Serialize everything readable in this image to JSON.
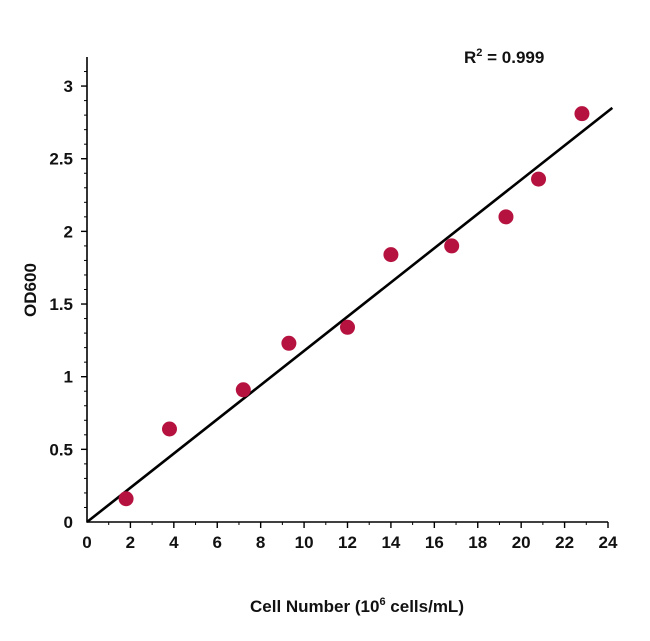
{
  "chart_data": {
    "type": "scatter",
    "title": "",
    "xlabel": {
      "prefix": "Cell Number (10",
      "sup": "6",
      "suffix": " cells/mL)"
    },
    "ylabel": "OD600",
    "xlim": [
      0,
      24
    ],
    "ylim": [
      0,
      3.2
    ],
    "xticks": [
      0,
      2,
      4,
      6,
      8,
      10,
      12,
      14,
      16,
      18,
      20,
      22,
      24
    ],
    "yticks": [
      0,
      0.5,
      1,
      1.5,
      2,
      2.5,
      3
    ],
    "ytick_labels": [
      "0",
      "0.5",
      "1",
      "1.5",
      "2",
      "2.5",
      "3"
    ],
    "grid": false,
    "points": [
      {
        "x": 1.8,
        "y": 0.16
      },
      {
        "x": 3.8,
        "y": 0.64
      },
      {
        "x": 7.2,
        "y": 0.91
      },
      {
        "x": 9.3,
        "y": 1.23
      },
      {
        "x": 12.0,
        "y": 1.34
      },
      {
        "x": 14.0,
        "y": 1.84
      },
      {
        "x": 16.8,
        "y": 1.9
      },
      {
        "x": 19.3,
        "y": 2.1
      },
      {
        "x": 20.8,
        "y": 2.36
      },
      {
        "x": 22.8,
        "y": 2.81
      }
    ],
    "fit_line": {
      "x0": 0,
      "y0": 0,
      "x1": 24.2,
      "y1": 2.85
    },
    "annotation": {
      "prefix": "R",
      "sup": "2",
      "suffix": " = 0.999"
    },
    "colors": {
      "point": "#b5123f",
      "line": "#000000",
      "axis": "#000000"
    }
  }
}
